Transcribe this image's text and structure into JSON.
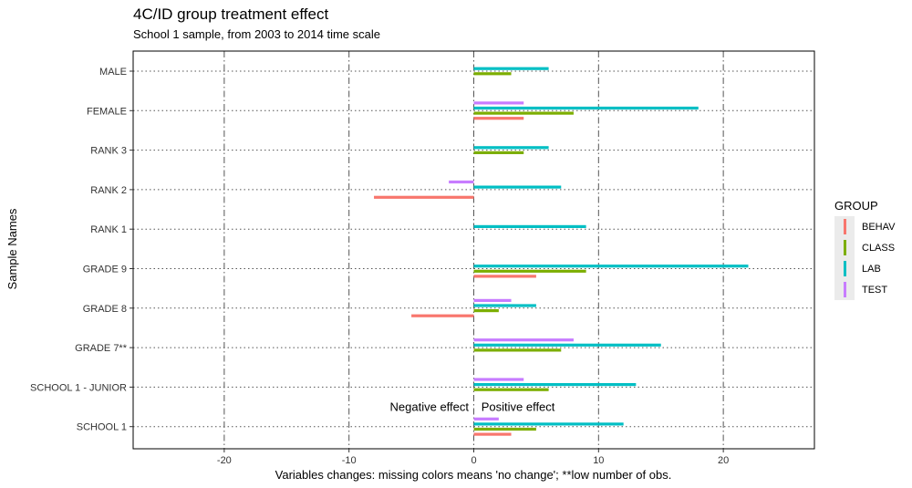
{
  "chart_data": {
    "type": "bar",
    "orientation": "horizontal",
    "title": "4C/ID group treatment effect",
    "subtitle": "School 1 sample, from 2003 to 2014 time scale",
    "xlabel": "Variables changes: missing colors means 'no change'; **low number of obs.",
    "ylabel": "Sample Names",
    "xlim": [
      -27.3,
      27.3
    ],
    "xticks": [
      -20,
      -10,
      0,
      10,
      20
    ],
    "xtick_labels": [
      "-20",
      "-10",
      "0",
      "10",
      "20"
    ],
    "categories": [
      "MALE",
      "FEMALE",
      "RANK 3",
      "RANK 2",
      "RANK 1",
      "GRADE 9",
      "GRADE 8",
      "GRADE 7**",
      "SCHOOL 1 - JUNIOR",
      "SCHOOL 1"
    ],
    "series": [
      {
        "name": "BEHAV",
        "color": "#F8766D",
        "values": [
          0,
          4,
          0,
          -8,
          0,
          5,
          -5,
          0,
          0,
          3
        ]
      },
      {
        "name": "CLASS",
        "color": "#7CAE00",
        "values": [
          3,
          8,
          4,
          0,
          0,
          9,
          2,
          7,
          6,
          5
        ]
      },
      {
        "name": "LAB",
        "color": "#00BFC4",
        "values": [
          6,
          18,
          6,
          7,
          9,
          22,
          5,
          15,
          13,
          12
        ]
      },
      {
        "name": "TEST",
        "color": "#C77CFF",
        "values": [
          0,
          4,
          0,
          -2,
          0,
          0,
          3,
          8,
          4,
          2
        ]
      }
    ],
    "annotations": [
      {
        "text": "Negative effect",
        "x": -0.4,
        "category": "SCHOOL 1",
        "anchor": "end"
      },
      {
        "text": "Positive effect",
        "x": 0.6,
        "category": "SCHOOL 1",
        "anchor": "start"
      }
    ],
    "legend": {
      "title": "GROUP",
      "position": "right"
    },
    "grid": {
      "major_x": "dashed",
      "major_y": "dotted"
    }
  }
}
